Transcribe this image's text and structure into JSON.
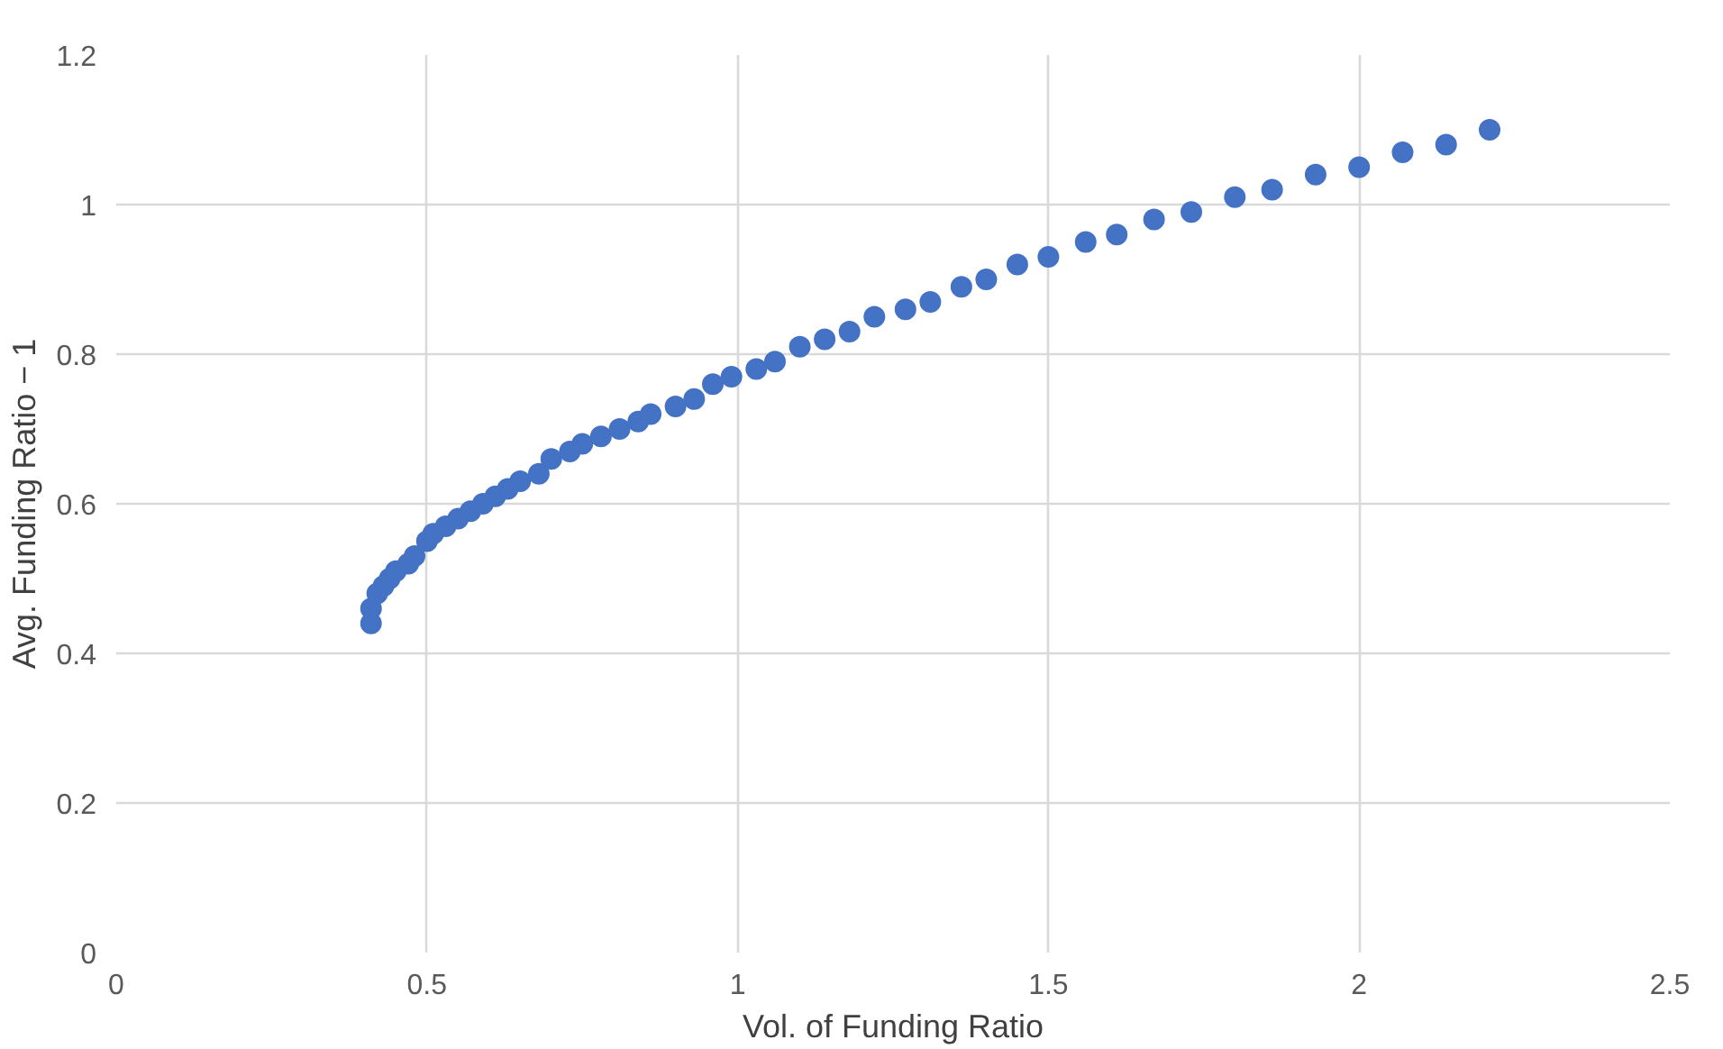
{
  "chart_data": {
    "type": "scatter",
    "xlabel": "Vol. of Funding Ratio",
    "ylabel": "Avg. Funding Ratio − 1",
    "xlim": [
      0,
      2.5
    ],
    "ylim": [
      0,
      1.2
    ],
    "xticks": [
      0,
      0.5,
      1,
      1.5,
      2,
      2.5
    ],
    "yticks": [
      0,
      0.2,
      0.4,
      0.6,
      0.8,
      1,
      1.2
    ],
    "grid": true,
    "marker": "circle",
    "series": [
      {
        "color": "#4472c4",
        "x": [
          0.41,
          0.41,
          0.42,
          0.43,
          0.44,
          0.45,
          0.47,
          0.48,
          0.5,
          0.51,
          0.53,
          0.55,
          0.57,
          0.59,
          0.61,
          0.63,
          0.65,
          0.68,
          0.7,
          0.73,
          0.75,
          0.78,
          0.81,
          0.84,
          0.86,
          0.9,
          0.93,
          0.96,
          0.99,
          1.03,
          1.06,
          1.1,
          1.14,
          1.18,
          1.22,
          1.27,
          1.31,
          1.36,
          1.4,
          1.45,
          1.5,
          1.56,
          1.61,
          1.67,
          1.73,
          1.8,
          1.86,
          1.93,
          2.0,
          2.07,
          2.14,
          2.21
        ],
        "values": [
          0.44,
          0.46,
          0.48,
          0.49,
          0.5,
          0.51,
          0.52,
          0.53,
          0.55,
          0.56,
          0.57,
          0.58,
          0.59,
          0.6,
          0.61,
          0.62,
          0.63,
          0.64,
          0.66,
          0.67,
          0.68,
          0.69,
          0.7,
          0.71,
          0.72,
          0.73,
          0.74,
          0.76,
          0.77,
          0.78,
          0.79,
          0.81,
          0.82,
          0.83,
          0.85,
          0.86,
          0.87,
          0.89,
          0.9,
          0.92,
          0.93,
          0.95,
          0.96,
          0.98,
          0.99,
          1.01,
          1.02,
          1.04,
          1.05,
          1.07,
          1.08,
          1.1
        ]
      }
    ]
  }
}
